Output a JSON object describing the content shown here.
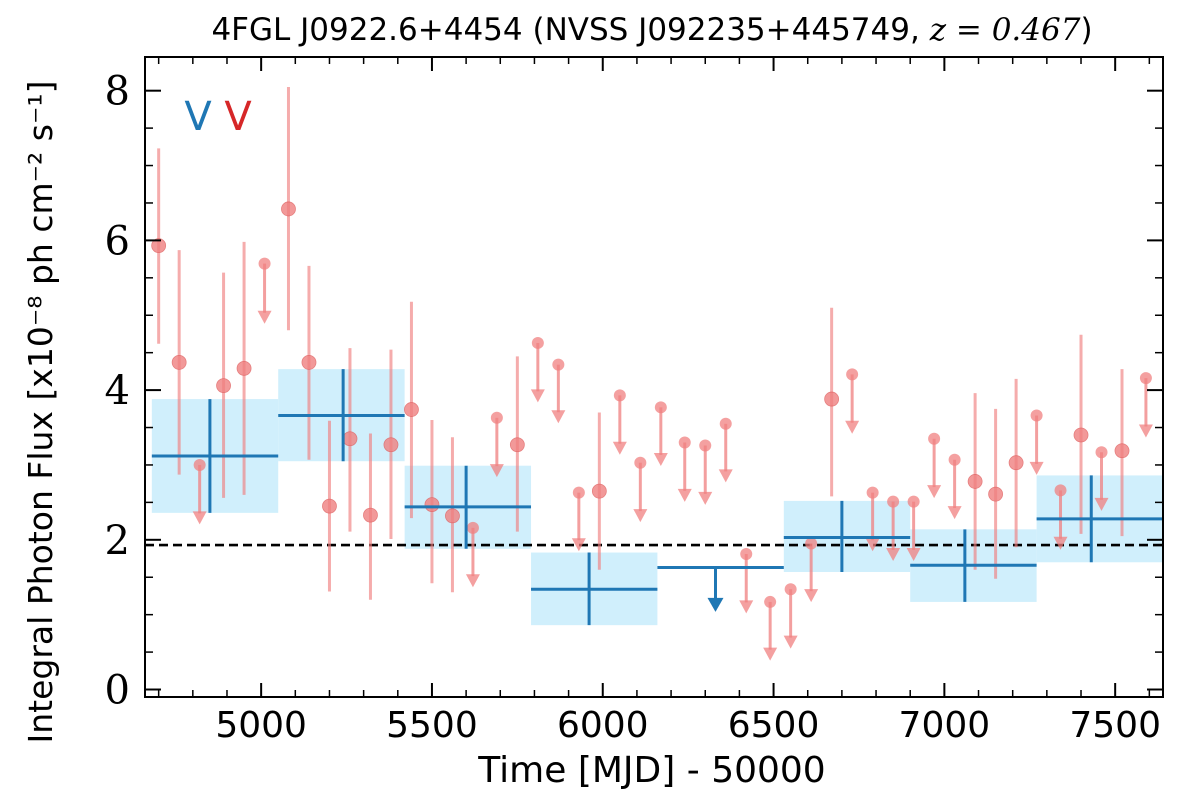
{
  "chart_data": {
    "type": "scatter",
    "title": {
      "prefix": "4FGL J0922.6+4454 (NVSS J092235+445749, ",
      "math": "z = 0.467",
      "suffix": ")"
    },
    "xlabel": "Time [MJD] - 50000",
    "ylabel": "Integral Photon Flux [x10⁻⁸ ph cm⁻² s⁻¹]",
    "xlim": [
      4660,
      7640
    ],
    "ylim": [
      -0.1,
      8.45
    ],
    "xticks": [
      5000,
      5500,
      6000,
      6500,
      7000,
      7500
    ],
    "yticks": [
      0,
      2,
      4,
      6,
      8
    ],
    "reference_line": 1.93,
    "markers": [
      {
        "label": "V",
        "color": "#1f77b4"
      },
      {
        "label": "V",
        "color": "#d62728"
      }
    ],
    "colors": {
      "red_points": "#f08080",
      "blue_bins": "#1f77b4",
      "bin_boxes": "#cdeefc",
      "dashed_line": "#000000"
    },
    "long_bins": [
      {
        "x0": 4680,
        "x1": 5050,
        "xc": 4850,
        "y": 3.12,
        "ylo": 2.36,
        "yhi": 3.88
      },
      {
        "x0": 5050,
        "x1": 5420,
        "xc": 5240,
        "y": 3.66,
        "ylo": 3.05,
        "yhi": 4.28
      },
      {
        "x0": 5420,
        "x1": 5790,
        "xc": 5600,
        "y": 2.44,
        "ylo": 1.88,
        "yhi": 2.99
      },
      {
        "x0": 5790,
        "x1": 6160,
        "xc": 5960,
        "y": 1.34,
        "ylo": 0.86,
        "yhi": 1.83
      },
      {
        "x0": 6160,
        "x1": 6530,
        "xc": 6330,
        "y": 1.63,
        "upper_limit": true,
        "arrow_to": 1.05
      },
      {
        "x0": 6530,
        "x1": 6900,
        "xc": 6700,
        "y": 2.03,
        "ylo": 1.57,
        "yhi": 2.52
      },
      {
        "x0": 6900,
        "x1": 7270,
        "xc": 7060,
        "y": 1.66,
        "ylo": 1.17,
        "yhi": 2.14
      },
      {
        "x0": 7270,
        "x1": 7640,
        "xc": 7430,
        "y": 2.28,
        "ylo": 1.7,
        "yhi": 2.86
      }
    ],
    "short_points": [
      {
        "x": 4700,
        "y": 5.93,
        "ylo": 4.62,
        "yhi": 7.23
      },
      {
        "x": 4760,
        "y": 4.37,
        "ylo": 2.87,
        "yhi": 5.87
      },
      {
        "x": 4820,
        "y": 3.0,
        "upper_limit": true,
        "arrow_to": 2.22
      },
      {
        "x": 4890,
        "y": 4.06,
        "ylo": 2.56,
        "yhi": 5.57
      },
      {
        "x": 4950,
        "y": 4.29,
        "ylo": 2.6,
        "yhi": 5.98
      },
      {
        "x": 5010,
        "y": 5.69,
        "upper_limit": true,
        "arrow_to": 4.9
      },
      {
        "x": 5080,
        "y": 6.42,
        "ylo": 4.8,
        "yhi": 8.05
      },
      {
        "x": 5140,
        "y": 4.37,
        "ylo": 3.07,
        "yhi": 5.66
      },
      {
        "x": 5200,
        "y": 2.45,
        "ylo": 1.31,
        "yhi": 3.59
      },
      {
        "x": 5260,
        "y": 3.35,
        "ylo": 2.11,
        "yhi": 4.56
      },
      {
        "x": 5320,
        "y": 2.33,
        "ylo": 1.2,
        "yhi": 3.42
      },
      {
        "x": 5380,
        "y": 3.27,
        "ylo": 2.01,
        "yhi": 4.54
      },
      {
        "x": 5440,
        "y": 3.74,
        "ylo": 2.29,
        "yhi": 5.18
      },
      {
        "x": 5500,
        "y": 2.47,
        "ylo": 1.42,
        "yhi": 3.6
      },
      {
        "x": 5560,
        "y": 2.32,
        "ylo": 1.3,
        "yhi": 3.37
      },
      {
        "x": 5620,
        "y": 2.16,
        "upper_limit": true,
        "arrow_to": 1.38
      },
      {
        "x": 5690,
        "y": 3.63,
        "upper_limit": true,
        "arrow_to": 2.85
      },
      {
        "x": 5750,
        "y": 3.27,
        "ylo": 2.11,
        "yhi": 4.45
      },
      {
        "x": 5810,
        "y": 4.63,
        "upper_limit": true,
        "arrow_to": 3.85
      },
      {
        "x": 5870,
        "y": 4.34,
        "upper_limit": true,
        "arrow_to": 3.57
      },
      {
        "x": 5930,
        "y": 2.63,
        "upper_limit": true,
        "arrow_to": 1.86
      },
      {
        "x": 5990,
        "y": 2.65,
        "ylo": 1.6,
        "yhi": 3.7
      },
      {
        "x": 6050,
        "y": 3.93,
        "upper_limit": true,
        "arrow_to": 3.15
      },
      {
        "x": 6110,
        "y": 3.03,
        "upper_limit": true,
        "arrow_to": 2.25
      },
      {
        "x": 6170,
        "y": 3.77,
        "upper_limit": true,
        "arrow_to": 3.0
      },
      {
        "x": 6240,
        "y": 3.3,
        "upper_limit": true,
        "arrow_to": 2.52
      },
      {
        "x": 6300,
        "y": 3.26,
        "upper_limit": true,
        "arrow_to": 2.48
      },
      {
        "x": 6360,
        "y": 3.55,
        "upper_limit": true,
        "arrow_to": 2.78
      },
      {
        "x": 6420,
        "y": 1.81,
        "upper_limit": true,
        "arrow_to": 1.03
      },
      {
        "x": 6490,
        "y": 1.17,
        "upper_limit": true,
        "arrow_to": 0.4
      },
      {
        "x": 6550,
        "y": 1.34,
        "upper_limit": true,
        "arrow_to": 0.56
      },
      {
        "x": 6610,
        "y": 1.95,
        "upper_limit": true,
        "arrow_to": 1.18
      },
      {
        "x": 6670,
        "y": 3.88,
        "ylo": 2.58,
        "yhi": 5.1
      },
      {
        "x": 6730,
        "y": 4.21,
        "upper_limit": true,
        "arrow_to": 3.43
      },
      {
        "x": 6790,
        "y": 2.63,
        "upper_limit": true,
        "arrow_to": 1.86
      },
      {
        "x": 6850,
        "y": 2.51,
        "upper_limit": true,
        "arrow_to": 1.73
      },
      {
        "x": 6910,
        "y": 2.51,
        "upper_limit": true,
        "arrow_to": 1.73
      },
      {
        "x": 6970,
        "y": 3.35,
        "upper_limit": true,
        "arrow_to": 2.57
      },
      {
        "x": 7030,
        "y": 3.07,
        "upper_limit": true,
        "arrow_to": 2.29
      },
      {
        "x": 7090,
        "y": 2.78,
        "ylo": 1.6,
        "yhi": 3.96
      },
      {
        "x": 7150,
        "y": 2.61,
        "ylo": 1.48,
        "yhi": 3.75
      },
      {
        "x": 7210,
        "y": 3.03,
        "ylo": 1.9,
        "yhi": 4.15
      },
      {
        "x": 7270,
        "y": 3.66,
        "upper_limit": true,
        "arrow_to": 2.88
      },
      {
        "x": 7340,
        "y": 2.66,
        "upper_limit": true,
        "arrow_to": 1.88
      },
      {
        "x": 7400,
        "y": 3.4,
        "ylo": 2.08,
        "yhi": 4.74
      },
      {
        "x": 7460,
        "y": 3.17,
        "upper_limit": true,
        "arrow_to": 2.4
      },
      {
        "x": 7520,
        "y": 3.19,
        "ylo": 2.05,
        "yhi": 4.28
      },
      {
        "x": 7590,
        "y": 4.16,
        "upper_limit": true,
        "arrow_to": 3.38
      }
    ]
  }
}
